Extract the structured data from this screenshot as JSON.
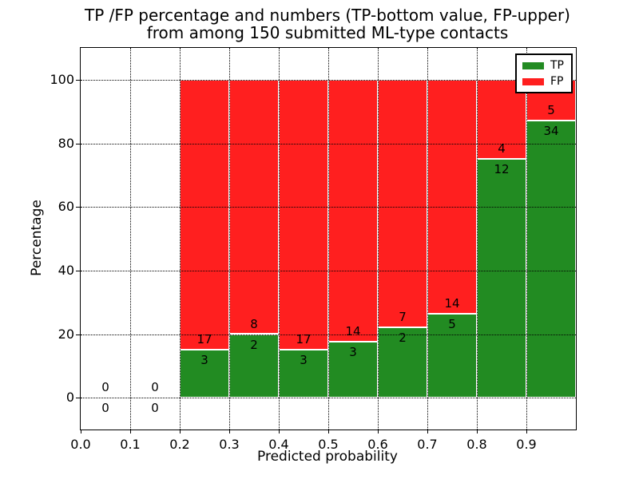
{
  "title_line1": "TP /FP percentage and numbers (TP-bottom value, FP-upper)",
  "title_line2": "from among 150 submitted ML-type contacts",
  "chart_data": {
    "type": "bar",
    "stacked": true,
    "title": "TP /FP percentage and numbers (TP-bottom value, FP-upper) from among 150 submitted ML-type contacts",
    "xlabel": "Predicted probability",
    "ylabel": "Percentage",
    "xlim": [
      0.0,
      1.0
    ],
    "ylim": [
      -10,
      110
    ],
    "xticks": [
      "0.0",
      "0.1",
      "0.2",
      "0.3",
      "0.4",
      "0.5",
      "0.6",
      "0.7",
      "0.8",
      "0.9"
    ],
    "yticks": [
      0,
      20,
      40,
      60,
      80,
      100
    ],
    "grid": "dotted",
    "bin_width": 0.1,
    "bins": [
      {
        "x": 0.0,
        "tp": 0,
        "fp": 0
      },
      {
        "x": 0.1,
        "tp": 0,
        "fp": 0
      },
      {
        "x": 0.2,
        "tp": 3,
        "fp": 17
      },
      {
        "x": 0.3,
        "tp": 2,
        "fp": 8
      },
      {
        "x": 0.4,
        "tp": 3,
        "fp": 17
      },
      {
        "x": 0.5,
        "tp": 3,
        "fp": 14
      },
      {
        "x": 0.6,
        "tp": 2,
        "fp": 7
      },
      {
        "x": 0.7,
        "tp": 5,
        "fp": 14
      },
      {
        "x": 0.8,
        "tp": 12,
        "fp": 4
      },
      {
        "x": 0.9,
        "tp": 34,
        "fp": 5
      }
    ],
    "tp_percentages": [
      0,
      0,
      15.0,
      20.0,
      15.0,
      17.6,
      22.2,
      26.3,
      75.0,
      87.2
    ],
    "legend": {
      "position": "upper right",
      "entries": [
        {
          "label": "TP",
          "color": "#228b22"
        },
        {
          "label": "FP",
          "color": "#ff1f1f"
        }
      ]
    }
  },
  "colors": {
    "tp": "#228b22",
    "fp": "#ff1f1f",
    "background": "#ffffff",
    "grid": "#000000",
    "bar_edge": "#ffffff"
  }
}
